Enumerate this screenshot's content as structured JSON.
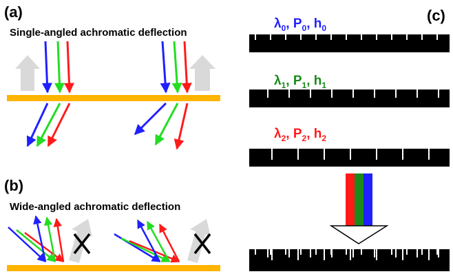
{
  "panels": {
    "a": {
      "label": "(a)",
      "caption": "Single-angled achromatic deflection"
    },
    "b": {
      "label": "(b)",
      "caption": "Wide-angled achromatic deflection"
    },
    "c": {
      "label": "(c)"
    }
  },
  "gratings": [
    {
      "lambda": "λ",
      "sub": "0",
      "p": "P",
      "h": "h",
      "color": "#1f1fff"
    },
    {
      "lambda": "λ",
      "sub": "1",
      "p": "P",
      "h": "h",
      "color": "#1a8a1a"
    },
    {
      "lambda": "λ",
      "sub": "2",
      "p": "P",
      "h": "h",
      "color": "#ff1a1a"
    }
  ],
  "colors": {
    "blue": "#1f1fff",
    "green": "#22dd22",
    "red": "#ff1a1a",
    "substrate": "#ffb400",
    "gray_arrow": "#d9d9d9",
    "dark_green": "#1a8a1a"
  },
  "icons": [
    "x-mark-icon",
    "down-arrow-icon",
    "up-arrow-icon"
  ]
}
